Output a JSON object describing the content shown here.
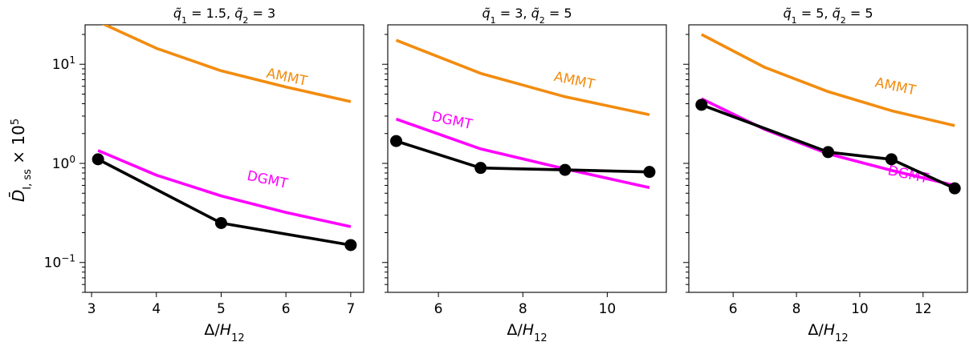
{
  "chart_data": [
    {
      "type": "line",
      "title_parts": [
        "q̃",
        "1",
        " = 1.5, ",
        "q̃",
        "2",
        " = 3"
      ],
      "xlabel_parts": [
        "Δ/",
        "H",
        "12"
      ],
      "ylabel_parts": [
        "D̄",
        "I, ss",
        " × 10",
        "5"
      ],
      "yscale": "log",
      "xlim": [
        2.9,
        7.2
      ],
      "ylim": [
        0.05,
        25
      ],
      "xticks": [
        3,
        4,
        5,
        6,
        7
      ],
      "xtick_labels": [
        "3",
        "4",
        "5",
        "6",
        "7"
      ],
      "yticks": [
        0.1,
        1,
        10
      ],
      "ytick_labels": [
        [
          "10",
          "−1"
        ],
        [
          "10",
          "0"
        ],
        [
          "10",
          "1"
        ]
      ],
      "series": [
        {
          "label": "AMMT",
          "color": "#F28C0F",
          "markers": false,
          "x": [
            3.1,
            4,
            5,
            6,
            7
          ],
          "y": [
            27,
            14.5,
            8.6,
            5.9,
            4.2
          ],
          "label_at": [
            6.0,
            6.7
          ],
          "label_rot": 12
        },
        {
          "label": "DGMT",
          "color": "#FF00FF",
          "markers": false,
          "x": [
            3.1,
            4,
            5,
            6,
            7
          ],
          "y": [
            1.35,
            0.76,
            0.47,
            0.32,
            0.23
          ],
          "label_at": [
            5.7,
            0.62
          ],
          "label_rot": 12
        },
        {
          "label": "",
          "color": "#000000",
          "markers": true,
          "x": [
            3.1,
            5,
            7
          ],
          "y": [
            1.1,
            0.25,
            0.15
          ]
        }
      ]
    },
    {
      "type": "line",
      "title_parts": [
        "q̃",
        "1",
        " = 3, ",
        "q̃",
        "2",
        " = 5"
      ],
      "xlabel_parts": [
        "Δ/",
        "H",
        "12"
      ],
      "yscale": "log",
      "xlim": [
        4.8,
        11.4
      ],
      "ylim": [
        0.05,
        25
      ],
      "xticks": [
        6,
        8,
        10
      ],
      "xtick_labels": [
        "6",
        "8",
        "10"
      ],
      "yticks": [
        0.1,
        1,
        10
      ],
      "ytick_labels": [],
      "series": [
        {
          "label": "AMMT",
          "color": "#F28C0F",
          "markers": false,
          "x": [
            5,
            7,
            9,
            11
          ],
          "y": [
            17.5,
            8.1,
            4.7,
            3.1
          ],
          "label_at": [
            9.2,
            6.2
          ],
          "label_rot": 12
        },
        {
          "label": "DGMT",
          "color": "#FF00FF",
          "markers": false,
          "x": [
            5,
            7,
            9,
            11
          ],
          "y": [
            2.8,
            1.4,
            0.88,
            0.57
          ],
          "label_at": [
            6.3,
            2.45
          ],
          "label_rot": 12
        },
        {
          "label": "",
          "color": "#000000",
          "markers": true,
          "x": [
            5,
            7,
            9,
            11
          ],
          "y": [
            1.68,
            0.9,
            0.86,
            0.82
          ]
        }
      ]
    },
    {
      "type": "line",
      "title_parts": [
        "q̃",
        "1",
        " = 5, ",
        "q̃",
        "2",
        " = 5"
      ],
      "xlabel_parts": [
        "Δ/",
        "H",
        "12"
      ],
      "yscale": "log",
      "xlim": [
        4.6,
        13.4
      ],
      "ylim": [
        0.05,
        25
      ],
      "xticks": [
        6,
        8,
        10,
        12
      ],
      "xtick_labels": [
        "6",
        "8",
        "10",
        "12"
      ],
      "yticks": [
        0.1,
        1,
        10
      ],
      "ytick_labels": [],
      "series": [
        {
          "label": "AMMT",
          "color": "#F28C0F",
          "markers": false,
          "x": [
            5,
            7,
            9,
            11,
            13
          ],
          "y": [
            20,
            9.3,
            5.3,
            3.4,
            2.4
          ],
          "label_at": [
            11.1,
            5.4
          ],
          "label_rot": 12
        },
        {
          "label": "DGMT",
          "color": "#FF00FF",
          "markers": false,
          "x": [
            5,
            7,
            9,
            11,
            13
          ],
          "y": [
            4.5,
            2.2,
            1.25,
            0.85,
            0.6
          ],
          "label_at": [
            11.5,
            0.7
          ],
          "label_rot": 12
        },
        {
          "label": "",
          "color": "#000000",
          "markers": true,
          "x": [
            5,
            9,
            11,
            13
          ],
          "y": [
            3.9,
            1.3,
            1.1,
            0.56
          ]
        }
      ]
    }
  ]
}
